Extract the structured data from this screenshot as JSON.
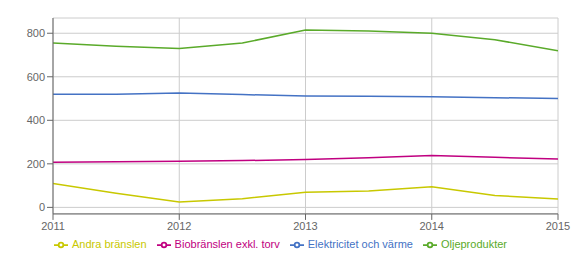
{
  "chart_data": {
    "type": "line",
    "x": [
      2011,
      2011.5,
      2012,
      2012.5,
      2013,
      2013.5,
      2014,
      2014.5,
      2015
    ],
    "series": [
      {
        "name": "Oljeprodukter",
        "color": "#5aaa2a",
        "values": [
          755,
          740,
          730,
          755,
          815,
          810,
          800,
          770,
          720
        ]
      },
      {
        "name": "Biobränslen exkl. torv",
        "color": "#c00080",
        "values": [
          207,
          210,
          212,
          215,
          220,
          228,
          238,
          230,
          222
        ]
      },
      {
        "name": "Elektricitet och värme",
        "color": "#4472c4",
        "values": [
          520,
          520,
          525,
          518,
          512,
          510,
          508,
          504,
          500
        ]
      },
      {
        "name": "Andra bränslen",
        "color": "#c8c800",
        "values": [
          110,
          65,
          25,
          40,
          70,
          75,
          95,
          55,
          38
        ]
      }
    ],
    "xlim": [
      2011,
      2015
    ],
    "xticks": [
      2011,
      2012,
      2013,
      2014,
      2015
    ],
    "ylim": [
      -30,
      870
    ],
    "yticks": [
      0,
      200,
      400,
      600,
      800
    ],
    "grid": true,
    "legend": "bottom"
  }
}
